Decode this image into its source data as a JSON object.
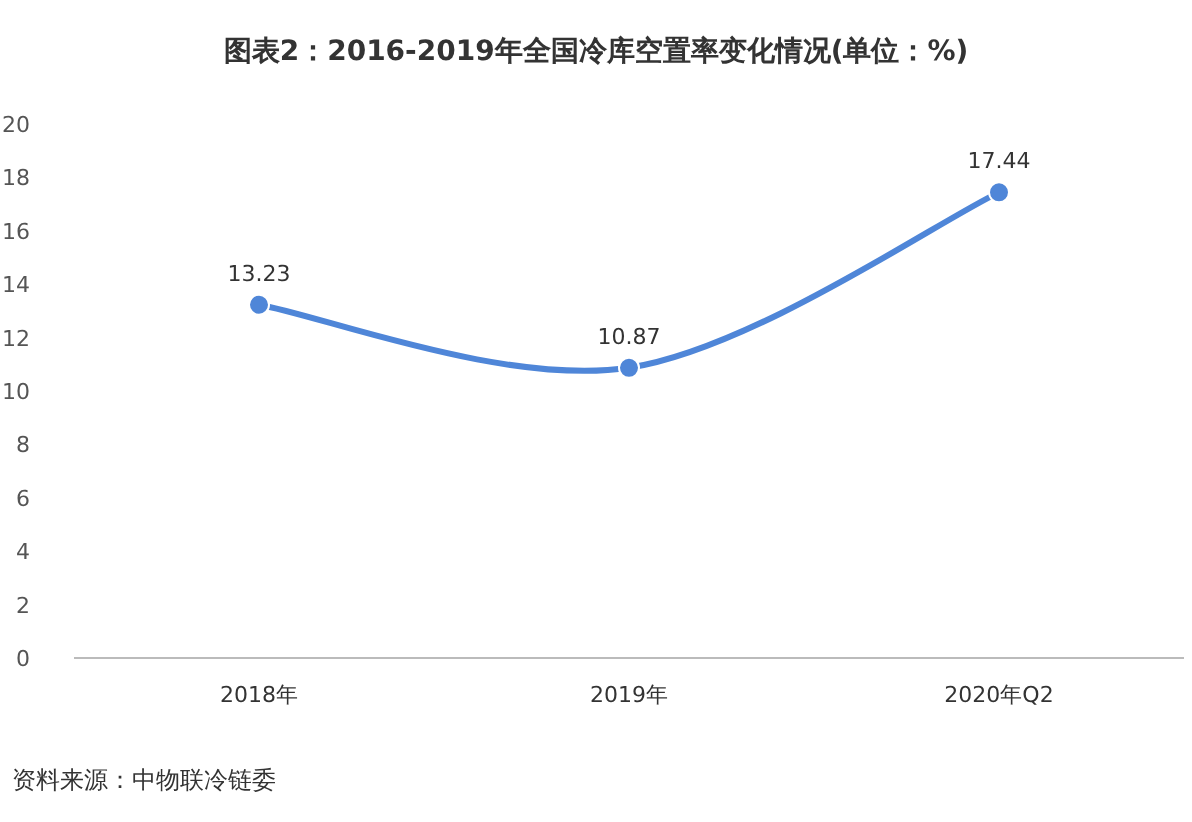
{
  "chart_data": {
    "type": "line",
    "title": "图表2：2016-2019年全国冷库空置率变化情况(单位：%)",
    "categories": [
      "2018年",
      "2019年",
      "2020年Q2"
    ],
    "series": [
      {
        "color": "#4f86d8",
        "values": [
          13.23,
          10.87,
          17.44
        ]
      }
    ],
    "ylim": [
      0,
      20
    ],
    "yticks": [
      0,
      2,
      4,
      6,
      8,
      10,
      12,
      14,
      16,
      18,
      20
    ],
    "data_labels": true,
    "marker": "circle",
    "line_style": "solid",
    "grid": false,
    "annotations": [
      "资料来源：中物联冷链委"
    ]
  }
}
